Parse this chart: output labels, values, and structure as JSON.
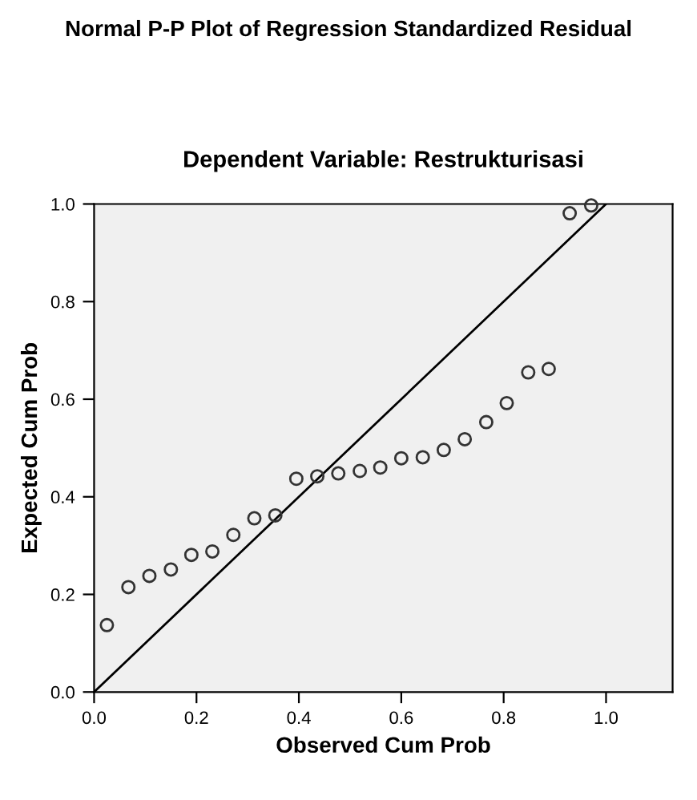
{
  "chart_data": {
    "type": "scatter",
    "title": "Normal P-P Plot of Regression Standardized Residual",
    "subtitle": "Dependent Variable: Restrukturisasi",
    "xlabel": "Observed Cum Prob",
    "ylabel": "Expected Cum Prob",
    "xlim": [
      0,
      1.13
    ],
    "ylim": [
      0,
      1
    ],
    "xticks": [
      {
        "value": 0,
        "label": "0.0"
      },
      {
        "value": 0.2,
        "label": "0.2"
      },
      {
        "value": 0.4,
        "label": "0.4"
      },
      {
        "value": 0.6,
        "label": "0.6"
      },
      {
        "value": 0.8,
        "label": "0.8"
      },
      {
        "value": 1,
        "label": "1.0"
      }
    ],
    "yticks": [
      {
        "value": 0,
        "label": "0.0"
      },
      {
        "value": 0.2,
        "label": "0.2"
      },
      {
        "value": 0.4,
        "label": "0.4"
      },
      {
        "value": 0.6,
        "label": "0.6"
      },
      {
        "value": 0.8,
        "label": "0.8"
      },
      {
        "value": 1,
        "label": "1.0"
      }
    ],
    "grid": false,
    "series": [
      {
        "marker": "circle",
        "color": "#333333",
        "x": [
          0.025,
          0.067,
          0.108,
          0.15,
          0.19,
          0.231,
          0.272,
          0.313,
          0.354,
          0.395,
          0.436,
          0.477,
          0.519,
          0.559,
          0.6,
          0.642,
          0.683,
          0.724,
          0.766,
          0.806,
          0.848,
          0.888,
          0.929,
          0.971
        ],
        "values": [
          0.137,
          0.215,
          0.238,
          0.251,
          0.281,
          0.288,
          0.322,
          0.356,
          0.362,
          0.437,
          0.442,
          0.448,
          0.453,
          0.46,
          0.479,
          0.481,
          0.496,
          0.518,
          0.553,
          0.592,
          0.655,
          0.662,
          0.981,
          0.997
        ]
      },
      {
        "type": "line",
        "color": "#000000",
        "x": [
          0,
          1
        ],
        "values": [
          0,
          1
        ]
      }
    ]
  }
}
